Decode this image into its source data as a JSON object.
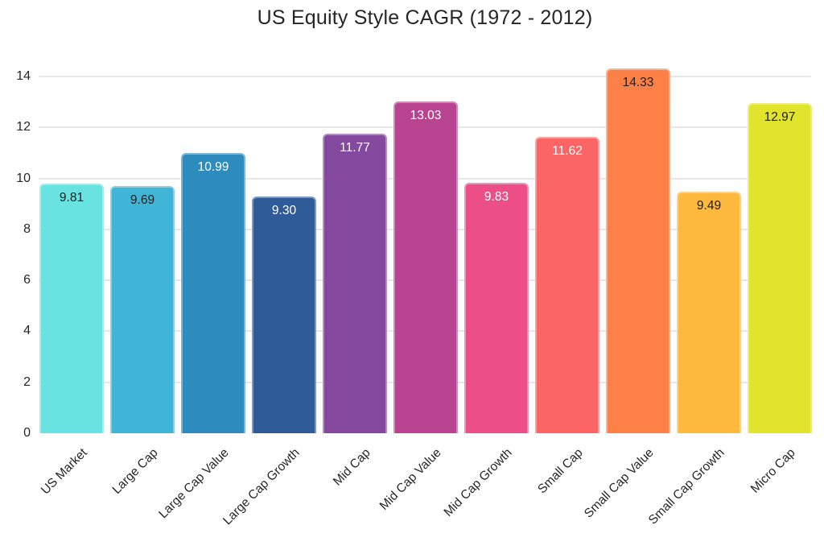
{
  "chart_data": {
    "type": "bar",
    "title": "US Equity Style CAGR (1972 - 2012)",
    "categories": [
      "US Market",
      "Large Cap",
      "Large Cap Value",
      "Large Cap Growth",
      "Mid Cap",
      "Mid Cap Value",
      "Mid Cap Growth",
      "Small Cap",
      "Small Cap Value",
      "Small Cap Growth",
      "Micro Cap"
    ],
    "values": [
      9.81,
      9.69,
      10.99,
      9.3,
      11.77,
      13.03,
      9.83,
      11.62,
      14.33,
      9.49,
      12.97
    ],
    "value_labels": [
      "9.81",
      "9.69",
      "10.99",
      "9.30",
      "11.77",
      "13.03",
      "9.83",
      "11.62",
      "14.33",
      "9.49",
      "12.97"
    ],
    "bar_colors": [
      "#69e2e2",
      "#41b5d7",
      "#2d8bbd",
      "#2f5c98",
      "#84499e",
      "#b84390",
      "#ec4f86",
      "#fc6566",
      "#fd8146",
      "#fdb93e",
      "#e2e32d"
    ],
    "value_label_colors": [
      "#1f1f1f",
      "#1f1f1f",
      "#ffffff",
      "#ffffff",
      "#ffffff",
      "#ffffff",
      "#ffffff",
      "#ffffff",
      "#1f1f1f",
      "#1f1f1f",
      "#1f1f1f"
    ],
    "xlabel": "",
    "ylabel": "",
    "ylim": [
      0,
      14.8
    ],
    "yticks": [
      0,
      2,
      4,
      6,
      8,
      10,
      12,
      14
    ],
    "grid": "horizontal",
    "gridline_color": "#e7e7e7",
    "legend": "none",
    "background": "#ffffff",
    "text_color": "#262626"
  }
}
